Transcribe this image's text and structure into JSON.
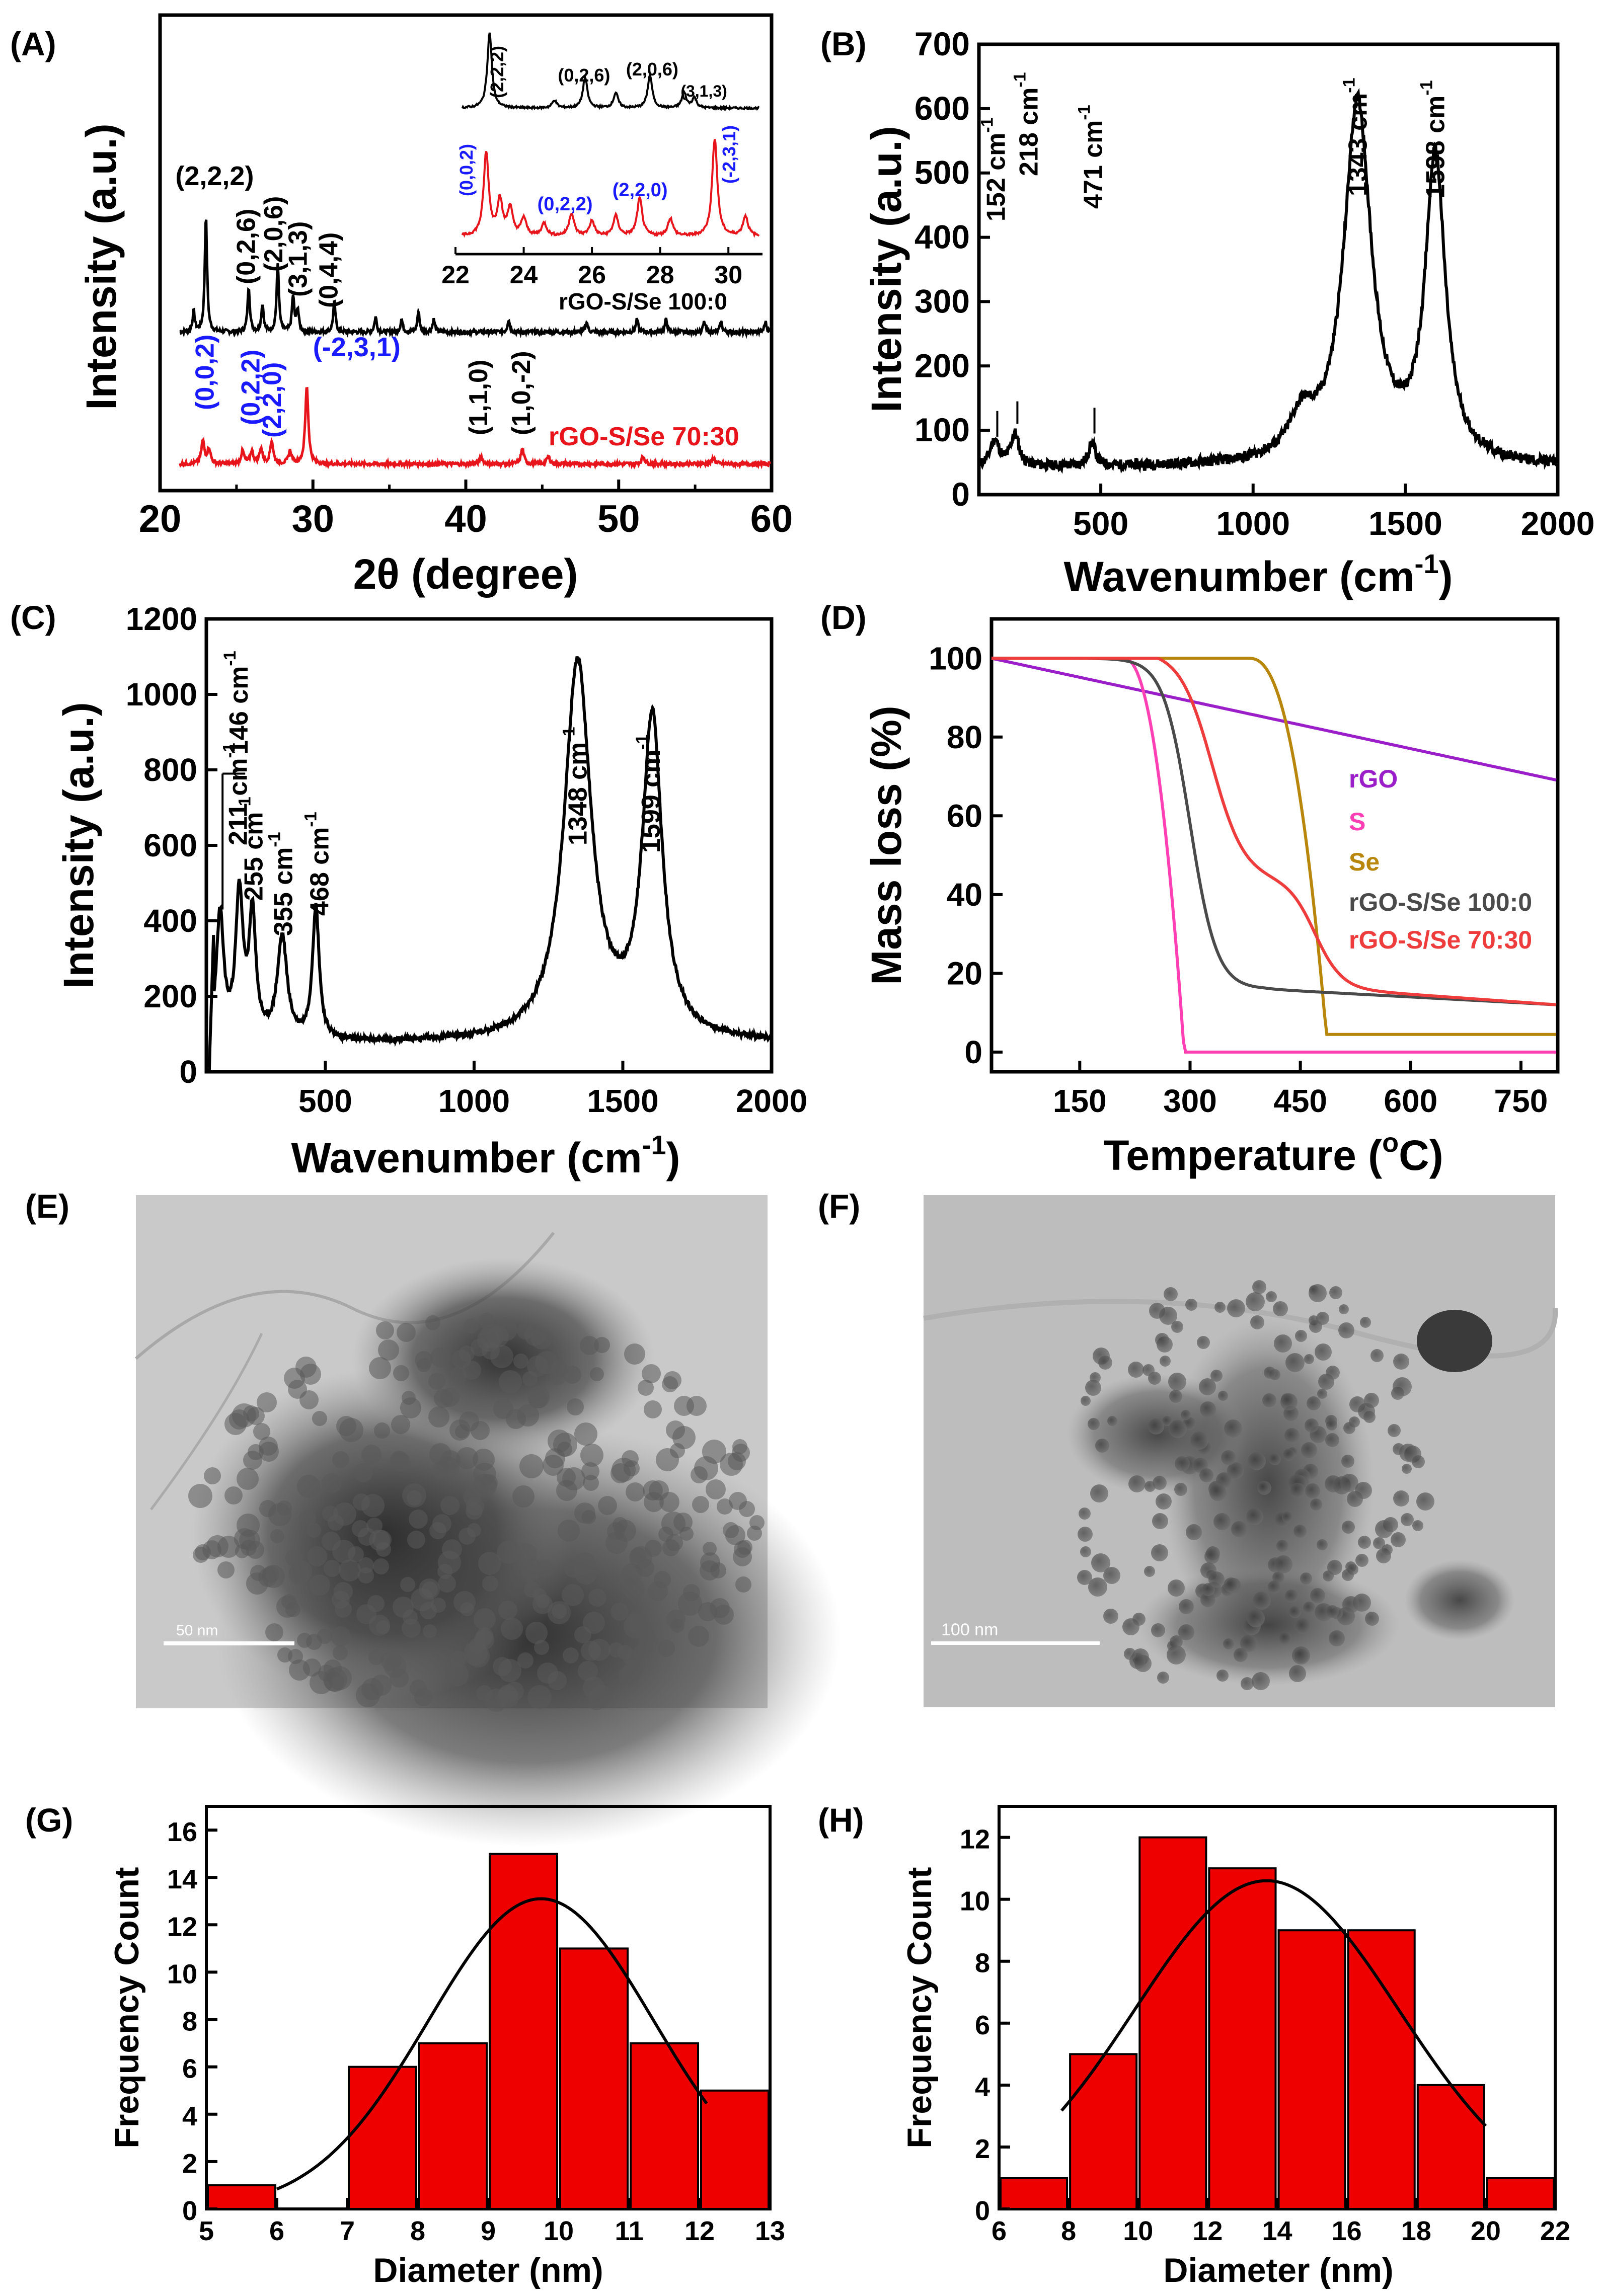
{
  "figure": {
    "panels": {
      "A": {
        "label": "(A)"
      },
      "B": {
        "label": "(B)"
      },
      "C": {
        "label": "(C)"
      },
      "D": {
        "label": "(D)"
      },
      "E": {
        "label": "(E)",
        "scale_bar": "50 nm"
      },
      "F": {
        "label": "(F)",
        "scale_bar": "100 nm"
      },
      "G": {
        "label": "(G)"
      },
      "H": {
        "label": "(H)"
      }
    }
  },
  "chart_data": [
    {
      "id": "A",
      "type": "line",
      "title": "",
      "xlabel": "2θ (degree)",
      "ylabel": "Intensity (a.u.)",
      "xlim": [
        20,
        60
      ],
      "xticks": [
        "20",
        "30",
        "40",
        "50",
        "60"
      ],
      "series": [
        {
          "name": "rGO-S/Se 100:0",
          "color": "#000000"
        },
        {
          "name": "rGO-S/Se 70:30",
          "color": "#e8141b"
        }
      ],
      "annotations_black": [
        "(2,2,2)",
        "(0,2,6)",
        "(2,0,6)",
        "(3,1,3)",
        "(0,4,4)",
        "(1,1,0)",
        "(1,0,-2)"
      ],
      "annotations_blue": [
        "(0,0,2)",
        "(0,2,2)",
        "(2,2,0)",
        "(-2,3,1)"
      ],
      "inset": {
        "xlim": [
          22,
          31
        ],
        "xticks": [
          "22",
          "24",
          "26",
          "28",
          "30"
        ],
        "annotations_black": [
          "(2,2,2)",
          "(0,2,6)",
          "(2,0,6)",
          "(3,1,3)"
        ],
        "annotations_blue": [
          "(0,0,2)",
          "(0,2,2)",
          "(2,2,0)",
          "(-2,3,1)"
        ]
      }
    },
    {
      "id": "B",
      "type": "line",
      "xlabel": "Wavenumber (cm",
      "xlabel_sup": "-1",
      "ylabel": "Intensity (a.u.)",
      "xlim": [
        100,
        2000
      ],
      "ylim": [
        0,
        700
      ],
      "xticks": [
        500,
        1000,
        1500,
        2000
      ],
      "yticks": [
        0,
        100,
        200,
        300,
        400,
        500,
        600,
        700
      ],
      "peaks": [
        {
          "x": 152,
          "y": 85,
          "label": "152 cm",
          "sup": "-1"
        },
        {
          "x": 218,
          "y": 90,
          "label": "218 cm",
          "sup": "-1"
        },
        {
          "x": 471,
          "y": 80,
          "label": "471 cm",
          "sup": "-1"
        },
        {
          "x": 1343,
          "y": 615,
          "label": "1343 cm",
          "sup": "-1"
        },
        {
          "x": 1598,
          "y": 530,
          "label": "1598 cm",
          "sup": "-1"
        }
      ]
    },
    {
      "id": "C",
      "type": "line",
      "xlabel": "Wavenumber (cm",
      "xlabel_sup": "-1",
      "ylabel": "Intensity (a.u.)",
      "xlim": [
        100,
        2000
      ],
      "ylim": [
        0,
        1200
      ],
      "xticks": [
        500,
        1000,
        1500,
        2000
      ],
      "yticks": [
        0,
        200,
        400,
        600,
        800,
        1000,
        1200
      ],
      "peaks": [
        {
          "x": 146,
          "y": 420,
          "label": "146 cm",
          "sup": "-1"
        },
        {
          "x": 211,
          "y": 470,
          "label": "211 cm",
          "sup": "-1"
        },
        {
          "x": 255,
          "y": 410,
          "label": "255 cm",
          "sup": "-1"
        },
        {
          "x": 355,
          "y": 350,
          "label": "355 cm",
          "sup": "-1"
        },
        {
          "x": 468,
          "y": 435,
          "label": "468 cm",
          "sup": "-1"
        },
        {
          "x": 1348,
          "y": 1080,
          "label": "1348 cm",
          "sup": "-1"
        },
        {
          "x": 1599,
          "y": 920,
          "label": "1599 cm",
          "sup": "-1"
        }
      ]
    },
    {
      "id": "D",
      "type": "line",
      "xlabel": "Temperature (",
      "xlabel_sup": "o",
      "xlabel_end": "C)",
      "ylabel": "Mass loss (%)",
      "xlim": [
        30,
        800
      ],
      "ylim": [
        -5,
        110
      ],
      "xticks": [
        150,
        300,
        450,
        600,
        750
      ],
      "yticks": [
        0,
        20,
        40,
        60,
        80,
        100
      ],
      "series": [
        {
          "name": "rGO",
          "color": "#9b1fc9"
        },
        {
          "name": "S",
          "color": "#ff3fb4"
        },
        {
          "name": "Se",
          "color": "#b8860b"
        },
        {
          "name": "rGO-S/Se 100:0",
          "color": "#4a4a4a"
        },
        {
          "name": "rGO-S/Se 70:30",
          "color": "#ee3b3b"
        }
      ]
    },
    {
      "id": "G",
      "type": "bar",
      "xlabel": "Diameter (nm)",
      "ylabel": "Frequency Count",
      "xlim": [
        5,
        13
      ],
      "ylim": [
        0,
        17
      ],
      "xticks": [
        5,
        6,
        7,
        8,
        9,
        10,
        11,
        12,
        13
      ],
      "yticks": [
        0,
        2,
        4,
        6,
        8,
        10,
        12,
        14,
        16
      ],
      "bins": [
        [
          5,
          6,
          1
        ],
        [
          6,
          7,
          0
        ],
        [
          7,
          8,
          6
        ],
        [
          8,
          9,
          7
        ],
        [
          9,
          10,
          15
        ],
        [
          10,
          11,
          11
        ],
        [
          11,
          12,
          7
        ],
        [
          12,
          13,
          5
        ]
      ],
      "fit": {
        "mean": 9.75,
        "sigma": 1.6,
        "amplitude": 13.1,
        "x_range": [
          6,
          12.1
        ]
      }
    },
    {
      "id": "H",
      "type": "bar",
      "xlabel": "Diameter (nm)",
      "ylabel": "Frequency Count",
      "xlim": [
        6,
        22
      ],
      "ylim": [
        0,
        13
      ],
      "xticks": [
        6,
        8,
        10,
        12,
        14,
        16,
        18,
        20,
        22
      ],
      "yticks": [
        0,
        2,
        4,
        6,
        8,
        10,
        12
      ],
      "bins": [
        [
          6,
          8,
          1
        ],
        [
          8,
          10,
          5
        ],
        [
          10,
          12,
          12
        ],
        [
          12,
          14,
          11
        ],
        [
          14,
          16,
          9
        ],
        [
          16,
          18,
          9
        ],
        [
          18,
          20,
          4
        ],
        [
          20,
          22,
          1
        ]
      ],
      "fit": {
        "mean": 13.7,
        "sigma": 3.8,
        "amplitude": 10.6,
        "x_range": [
          7.8,
          20
        ]
      }
    }
  ]
}
